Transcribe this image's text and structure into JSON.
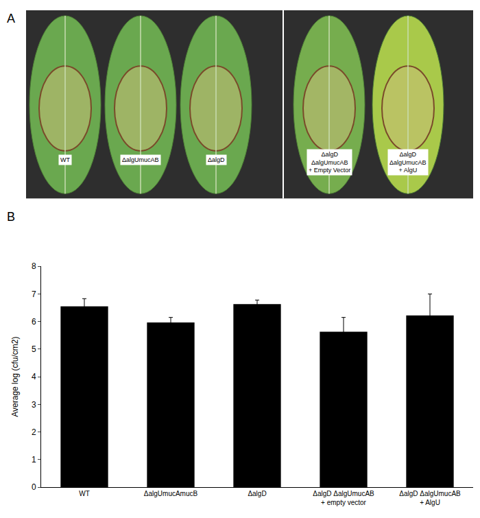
{
  "figure": {
    "panel_labels": [
      "A",
      "B"
    ],
    "photo_labels": [
      "WT",
      "ΔalgUmucAB",
      "ΔalgD",
      "ΔalgD ΔalgUmucAB + Empty Vector",
      "ΔalgD ΔalgUmucAB + AlgU"
    ]
  },
  "chart_data": {
    "type": "bar",
    "categories": [
      "WT",
      "ΔalgUmucAmucB",
      "ΔalgD",
      "ΔalgD ΔalgUmucAB + empty vector",
      "ΔalgD ΔalgUmucAB + AlgU"
    ],
    "values": [
      6.55,
      5.97,
      6.63,
      5.63,
      6.22
    ],
    "errors": [
      0.28,
      0.18,
      0.15,
      0.52,
      0.78
    ],
    "color": "#000000",
    "y_label": "Average log (cfu/cm2)",
    "ylim": [
      0,
      8
    ],
    "yticks": [
      0,
      1,
      2,
      3,
      4,
      5,
      6,
      7,
      8
    ],
    "grid": false
  }
}
